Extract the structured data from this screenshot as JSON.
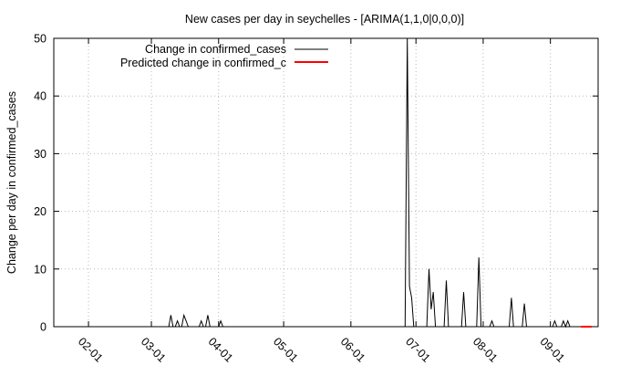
{
  "chart_data": {
    "type": "line",
    "title": "New cases per day in seychelles -  [ARIMA(1,1,0|0,0,0)]",
    "xlabel": "",
    "ylabel": "Change per day in confirmed_cases",
    "ylim": [
      0,
      50
    ],
    "yticks": [
      0,
      10,
      20,
      30,
      40,
      50
    ],
    "xlim": [
      "2020-01-16",
      "2020-09-23"
    ],
    "xticks": [
      {
        "date": "2020-02-01",
        "label": "02-01"
      },
      {
        "date": "2020-03-01",
        "label": "03-01"
      },
      {
        "date": "2020-04-01",
        "label": "04-01"
      },
      {
        "date": "2020-05-01",
        "label": "05-01"
      },
      {
        "date": "2020-06-01",
        "label": "06-01"
      },
      {
        "date": "2020-07-01",
        "label": "07-01"
      },
      {
        "date": "2020-08-01",
        "label": "08-01"
      },
      {
        "date": "2020-09-01",
        "label": "09-01"
      }
    ],
    "grid": true,
    "legend_position": "top-left",
    "series": [
      {
        "name": "Change in confirmed_cases",
        "color": "#000000",
        "points": [
          [
            "2020-03-08",
            0
          ],
          [
            "2020-03-09",
            0
          ],
          [
            "2020-03-10",
            2
          ],
          [
            "2020-03-11",
            0
          ],
          [
            "2020-03-12",
            0
          ],
          [
            "2020-03-13",
            1
          ],
          [
            "2020-03-14",
            0
          ],
          [
            "2020-03-15",
            0
          ],
          [
            "2020-03-16",
            2
          ],
          [
            "2020-03-17",
            1
          ],
          [
            "2020-03-18",
            0
          ],
          [
            "2020-03-23",
            0
          ],
          [
            "2020-03-24",
            1
          ],
          [
            "2020-03-25",
            0
          ],
          [
            "2020-03-26",
            0
          ],
          [
            "2020-03-27",
            2
          ],
          [
            "2020-03-28",
            0
          ],
          [
            "2020-04-01",
            0
          ],
          [
            "2020-04-02",
            1
          ],
          [
            "2020-04-03",
            0
          ],
          [
            "2020-06-26",
            0
          ],
          [
            "2020-06-27",
            50
          ],
          [
            "2020-06-28",
            7
          ],
          [
            "2020-06-29",
            5
          ],
          [
            "2020-06-30",
            0
          ],
          [
            "2020-07-06",
            0
          ],
          [
            "2020-07-07",
            10
          ],
          [
            "2020-07-08",
            3
          ],
          [
            "2020-07-09",
            6
          ],
          [
            "2020-07-10",
            0
          ],
          [
            "2020-07-14",
            0
          ],
          [
            "2020-07-15",
            8
          ],
          [
            "2020-07-16",
            0
          ],
          [
            "2020-07-20",
            0
          ],
          [
            "2020-07-21",
            0
          ],
          [
            "2020-07-22",
            0
          ],
          [
            "2020-07-23",
            6
          ],
          [
            "2020-07-24",
            0
          ],
          [
            "2020-07-28",
            0
          ],
          [
            "2020-07-29",
            0
          ],
          [
            "2020-07-30",
            12
          ],
          [
            "2020-07-31",
            0
          ],
          [
            "2020-08-04",
            0
          ],
          [
            "2020-08-05",
            1
          ],
          [
            "2020-08-06",
            0
          ],
          [
            "2020-08-13",
            0
          ],
          [
            "2020-08-14",
            5
          ],
          [
            "2020-08-15",
            0
          ],
          [
            "2020-08-16",
            0
          ],
          [
            "2020-08-19",
            0
          ],
          [
            "2020-08-20",
            4
          ],
          [
            "2020-08-21",
            0
          ],
          [
            "2020-09-02",
            0
          ],
          [
            "2020-09-03",
            1
          ],
          [
            "2020-09-04",
            0
          ],
          [
            "2020-09-06",
            0
          ],
          [
            "2020-09-07",
            1
          ],
          [
            "2020-09-08",
            0
          ],
          [
            "2020-09-09",
            1
          ],
          [
            "2020-09-10",
            0
          ],
          [
            "2020-09-11",
            0
          ]
        ]
      },
      {
        "name": "Predicted change in confirmed_c",
        "color": "#ff0000",
        "points": [
          [
            "2020-09-15",
            0
          ],
          [
            "2020-09-16",
            0
          ],
          [
            "2020-09-17",
            0
          ],
          [
            "2020-09-18",
            0
          ],
          [
            "2020-09-19",
            0
          ],
          [
            "2020-09-20",
            0
          ]
        ]
      }
    ]
  }
}
